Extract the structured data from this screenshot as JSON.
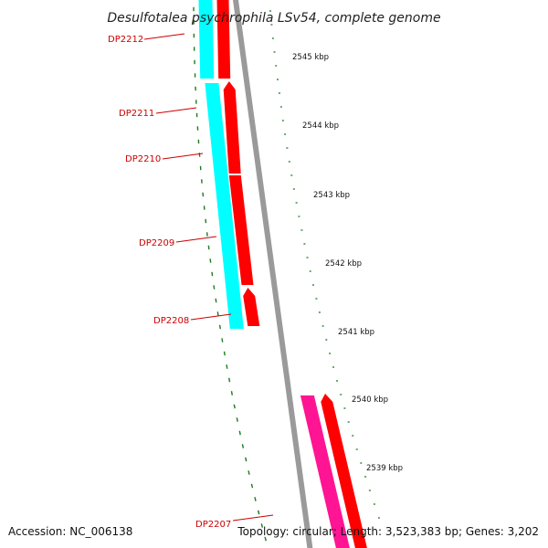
{
  "title": "Desulfotalea psychrophila LSv54, complete genome",
  "footer": {
    "accession": "Accession: NC_006138",
    "summary": "Topology: circular; Length: 3,523,383 bp; Genes: 3,202"
  },
  "colors": {
    "gene_label": "#cc0000",
    "forward_gene": "#ff0000",
    "reverse_gene": "#00ffff",
    "reverse_gene_alt": "#ff1493",
    "backbone": "#9a9a9a",
    "tick": "#1f7a1f"
  },
  "gene_labels": [
    "DP2212",
    "DP2211",
    "DP2210",
    "DP2209",
    "DP2208",
    "DP2207"
  ],
  "kbp_labels": [
    "2545 kbp",
    "2544 kbp",
    "2543 kbp",
    "2542 kbp",
    "2541 kbp",
    "2540 kbp",
    "2539 kbp"
  ]
}
